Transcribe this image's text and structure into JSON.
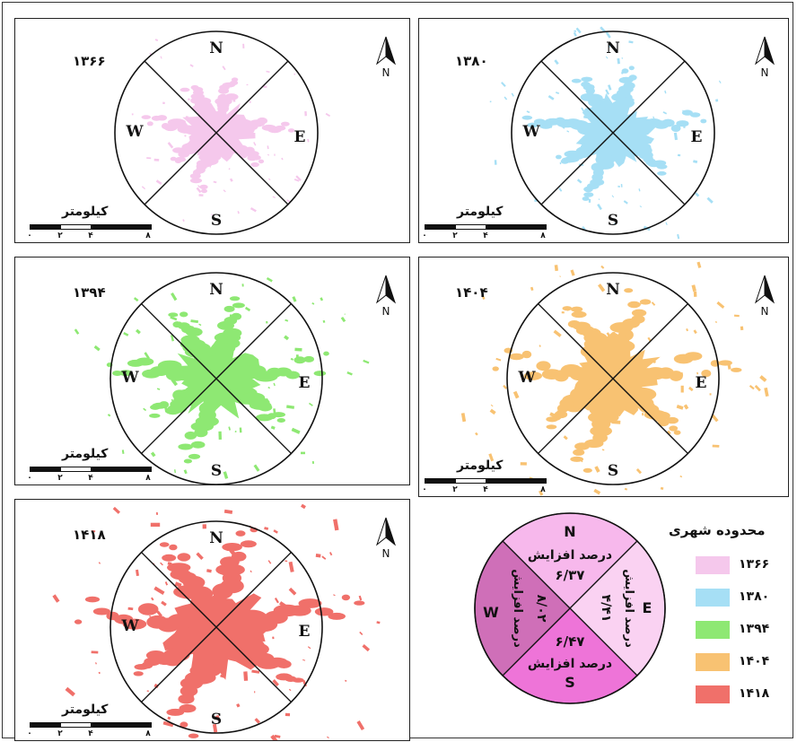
{
  "panels": [
    {
      "year": "۱۳۶۶",
      "color": "#f5c8ec",
      "spread": 0.55
    },
    {
      "year": "۱۳۸۰",
      "color": "#a6dff5",
      "spread": 0.7
    },
    {
      "year": "۱۳۹۴",
      "color": "#8ee873",
      "spread": 0.9
    },
    {
      "year": "۱۴۰۴",
      "color": "#f8c272",
      "spread": 1.0
    },
    {
      "year": "۱۴۱۸",
      "color": "#f0706a",
      "spread": 1.2
    }
  ],
  "directions": {
    "n": "N",
    "e": "E",
    "s": "S",
    "w": "W"
  },
  "north_arrow_label": "N",
  "scale": {
    "title": "کیلومتر",
    "ticks": [
      "۰",
      "۲",
      "۴",
      "۸"
    ]
  },
  "legend": {
    "title": "محدوده شهری",
    "items": [
      {
        "label": "۱۳۶۶",
        "color": "#f5c8ec"
      },
      {
        "label": "۱۳۸۰",
        "color": "#a6dff5"
      },
      {
        "label": "۱۳۹۴",
        "color": "#8ee873"
      },
      {
        "label": "۱۴۰۴",
        "color": "#f8c272"
      },
      {
        "label": "۱۴۱۸",
        "color": "#f0706a"
      }
    ]
  },
  "growth_circle": {
    "label_line": "درصد افزایش",
    "n": {
      "dir": "N",
      "value": "۶/۳۷",
      "color": "#f7b8ec"
    },
    "e": {
      "dir": "E",
      "value": "۴/۴۱",
      "color": "#fad2f2"
    },
    "s": {
      "dir": "S",
      "value": "۶/۴۷",
      "color": "#ee74d8"
    },
    "w": {
      "dir": "W",
      "value": "۸/۰۲",
      "color": "#cf6fb8"
    }
  }
}
